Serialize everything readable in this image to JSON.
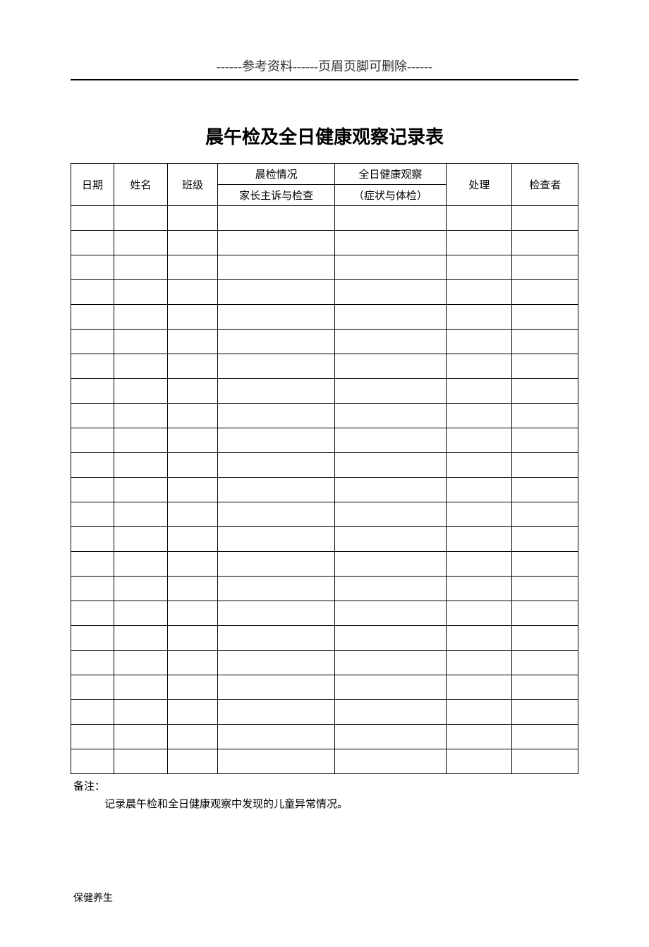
{
  "header": {
    "reference_text": "------参考资料------页眉页脚可删除------"
  },
  "title": "晨午检及全日健康观察记录表",
  "table": {
    "columns": {
      "date": "日期",
      "name": "姓名",
      "class": "班级",
      "morning_check": "晨检情况",
      "morning_check_sub": "家长主诉与检查",
      "allday_obs": "全日健康观察",
      "allday_obs_sub": "（症状与体检）",
      "handle": "处理",
      "checker": "检查者"
    },
    "empty_row_count": 23
  },
  "notes": {
    "label": "备注：",
    "body": "记录晨午检和全日健康观察中发现的儿童异常情况。"
  },
  "footer": "保健养生",
  "style": {
    "page_bg": "#ffffff",
    "text_color": "#000000",
    "border_color": "#000000",
    "title_fontsize": 26,
    "header_fontsize": 18,
    "body_fontsize": 15,
    "footer_fontsize": 14
  }
}
